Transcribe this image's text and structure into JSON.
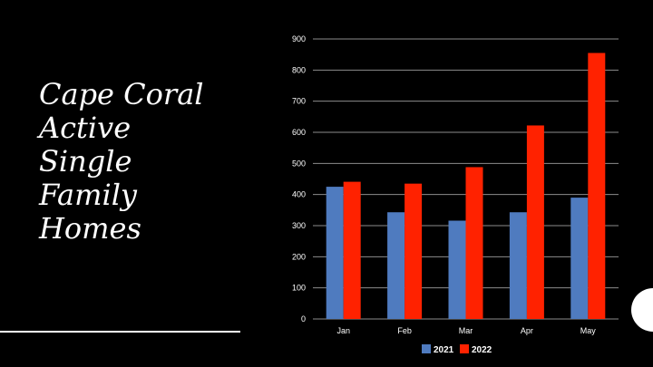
{
  "slide": {
    "title_lines": [
      "Cape Coral",
      "Active",
      "Single",
      "Family",
      "Homes"
    ]
  },
  "colors": {
    "series_2021": "#4f7bbf",
    "series_2022": "#ff2200",
    "grid": "#8c8c8c",
    "background": "#000000"
  },
  "chart_data": {
    "type": "bar",
    "categories": [
      "Jan",
      "Feb",
      "Mar",
      "Apr",
      "May"
    ],
    "series": [
      {
        "name": "2021",
        "values": [
          425,
          343,
          316,
          343,
          390
        ]
      },
      {
        "name": "2022",
        "values": [
          441,
          435,
          488,
          622,
          855
        ]
      }
    ],
    "ylim": [
      0,
      900
    ],
    "yticks": [
      0,
      100,
      200,
      300,
      400,
      500,
      600,
      700,
      800,
      900
    ],
    "grid": true,
    "legend": "bottom",
    "title": "",
    "xlabel": "",
    "ylabel": ""
  }
}
